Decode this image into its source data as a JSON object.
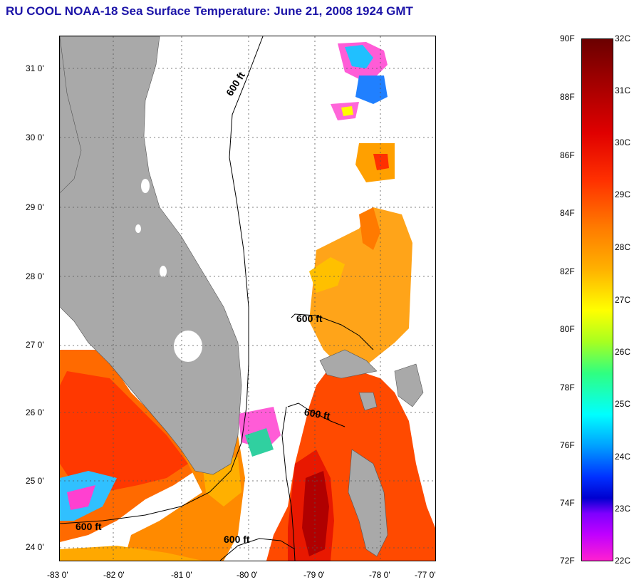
{
  "title": "RU COOL  NOAA-18  Sea Surface Temperature:  June 21, 2008 1924 GMT",
  "map": {
    "lat_labels": [
      "31 0'",
      "30 0'",
      "29 0'",
      "28 0'",
      "27 0'",
      "26 0'",
      "25 0'",
      "24 0'"
    ],
    "lon_labels": [
      "-83 0'",
      "-82 0'",
      "-81 0'",
      "-80 0'",
      "-79 0'",
      "-78 0'",
      "-77 0'"
    ],
    "contour_labels": [
      "600 ft",
      "600 ft",
      "600 ft",
      "600 ft",
      "600 ft"
    ],
    "colors": {
      "land": "#a9a9a9",
      "grid": "#555555",
      "contour": "#000000"
    }
  },
  "colorbar": {
    "fahrenheit_labels": [
      "90F",
      "88F",
      "86F",
      "84F",
      "82F",
      "80F",
      "78F",
      "76F",
      "74F",
      "72F"
    ],
    "celsius_labels": [
      "32C",
      "31C",
      "30C",
      "29C",
      "28C",
      "27C",
      "26C",
      "25C",
      "24C",
      "23C",
      "22C"
    ]
  }
}
